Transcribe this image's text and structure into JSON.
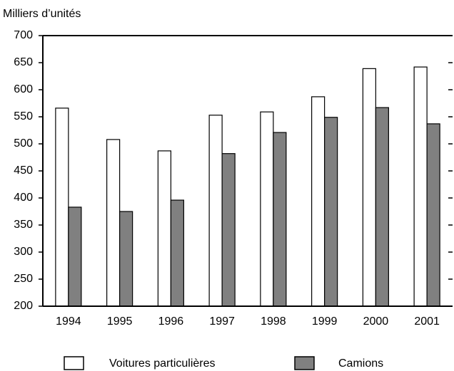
{
  "chart_data": {
    "type": "bar",
    "y_axis_label": "Milliers d’unités",
    "categories": [
      "1994",
      "1995",
      "1996",
      "1997",
      "1998",
      "1999",
      "2000",
      "2001"
    ],
    "series": [
      {
        "name": "Voitures particulières",
        "color": "#ffffff",
        "values": [
          566,
          508,
          487,
          553,
          559,
          587,
          639,
          642
        ]
      },
      {
        "name": "Camions",
        "color": "#808080",
        "values": [
          383,
          375,
          396,
          482,
          521,
          549,
          567,
          537
        ]
      }
    ],
    "ylim": [
      200,
      700
    ],
    "yticks": [
      200,
      250,
      300,
      350,
      400,
      450,
      500,
      550,
      600,
      650,
      700
    ]
  }
}
